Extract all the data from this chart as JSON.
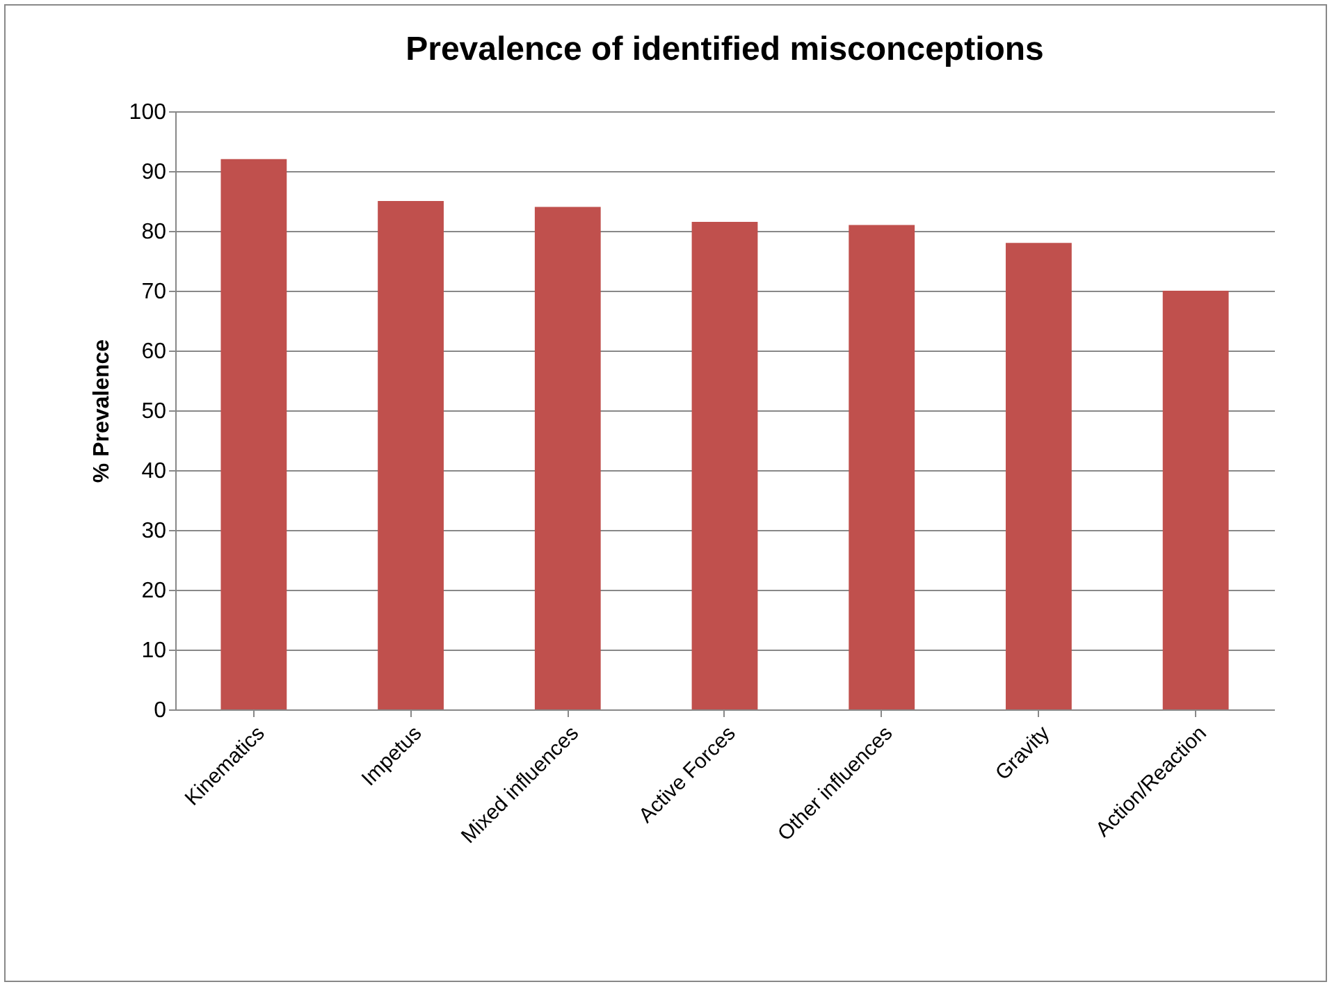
{
  "chart_data": {
    "type": "bar",
    "title": "Prevalence of identified misconceptions",
    "ylabel": "% Prevalence",
    "categories": [
      "Kinematics",
      "Impetus",
      "Mixed influences",
      "Active Forces",
      "Other influences",
      "Gravity",
      "Action/Reaction"
    ],
    "values": [
      92,
      85,
      84,
      81.5,
      81,
      78,
      70
    ],
    "color": "#c0504d",
    "ylim": [
      0,
      100
    ],
    "yticks": [
      0,
      10,
      20,
      30,
      40,
      50,
      60,
      70,
      80,
      90,
      100
    ],
    "grid": "y"
  }
}
